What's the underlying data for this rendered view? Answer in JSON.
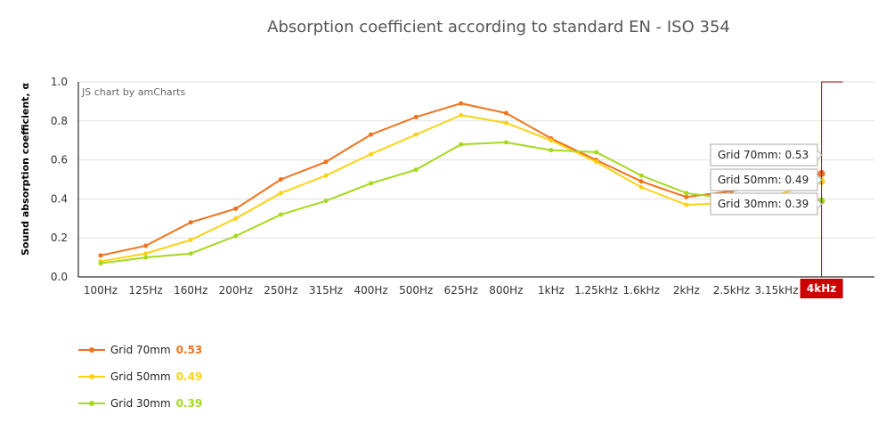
{
  "chart_data": {
    "type": "line",
    "title": "Absorption coefficient according to standard EN - ISO 354",
    "ylabel": "Sound absorption coefficient, α",
    "xlabel": "",
    "credit": "JS chart by amCharts",
    "ylim": [
      0,
      1.0
    ],
    "yticks": [
      "0.0",
      "0.2",
      "0.4",
      "0.6",
      "0.8",
      "1.0"
    ],
    "grid": true,
    "legend_position": "bottom-left",
    "cursor_category": "4kHz",
    "categories": [
      "100Hz",
      "125Hz",
      "160Hz",
      "200Hz",
      "250Hz",
      "315Hz",
      "400Hz",
      "500Hz",
      "625Hz",
      "800Hz",
      "1kHz",
      "1.25kHz",
      "1.6kHz",
      "2kHz",
      "2.5kHz",
      "3.15kHz",
      "4kHz"
    ],
    "series": [
      {
        "name": "Grid 70mm",
        "color": "#f0731c",
        "value_label": "0.53",
        "tooltip": "Grid 70mm: 0.53",
        "values": [
          0.11,
          0.16,
          0.28,
          0.35,
          0.5,
          0.59,
          0.73,
          0.82,
          0.89,
          0.84,
          0.71,
          0.6,
          0.49,
          0.41,
          0.44,
          0.48,
          0.53
        ]
      },
      {
        "name": "Grid 50mm",
        "color": "#fcd216",
        "value_label": "0.49",
        "tooltip": "Grid 50mm: 0.49",
        "values": [
          0.08,
          0.12,
          0.19,
          0.3,
          0.43,
          0.52,
          0.63,
          0.73,
          0.83,
          0.79,
          0.7,
          0.59,
          0.46,
          0.37,
          0.38,
          0.42,
          0.49
        ]
      },
      {
        "name": "Grid 30mm",
        "color": "#a5d91e",
        "value_label": "0.39",
        "tooltip": "Grid 30mm: 0.39",
        "values": [
          0.07,
          0.1,
          0.12,
          0.21,
          0.32,
          0.39,
          0.48,
          0.55,
          0.68,
          0.69,
          0.65,
          0.64,
          0.52,
          0.43,
          0.4,
          0.4,
          0.39
        ]
      }
    ]
  }
}
